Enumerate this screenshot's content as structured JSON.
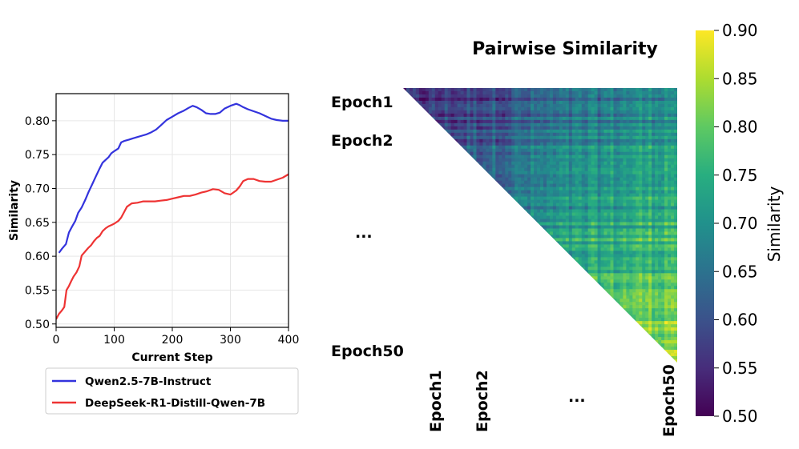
{
  "chart_data": [
    {
      "type": "line",
      "title": "",
      "xlabel": "Current Step",
      "ylabel": "Similarity",
      "xlim": [
        0,
        400
      ],
      "ylim": [
        0.495,
        0.84
      ],
      "x_ticks": [
        0,
        100,
        200,
        300,
        400
      ],
      "y_ticks": [
        0.5,
        0.55,
        0.6,
        0.65,
        0.7,
        0.75,
        0.8
      ],
      "grid": true,
      "legend_position": "bottom-outside",
      "series": [
        {
          "name": "Qwen2.5-7B-Instruct",
          "color": "#3333dd",
          "x": [
            5,
            10,
            17,
            22,
            27,
            33,
            38,
            44,
            50,
            56,
            62,
            68,
            74,
            80,
            85,
            90,
            95,
            100,
            107,
            112,
            117,
            125,
            132,
            140,
            148,
            156,
            164,
            172,
            180,
            190,
            200,
            210,
            220,
            228,
            235,
            242,
            250,
            258,
            266,
            274,
            282,
            290,
            300,
            310,
            316,
            322,
            330,
            340,
            350,
            360,
            370,
            380,
            390,
            400
          ],
          "y": [
            0.605,
            0.611,
            0.618,
            0.635,
            0.643,
            0.652,
            0.664,
            0.672,
            0.683,
            0.695,
            0.706,
            0.717,
            0.728,
            0.738,
            0.742,
            0.746,
            0.752,
            0.755,
            0.759,
            0.768,
            0.77,
            0.772,
            0.774,
            0.776,
            0.778,
            0.78,
            0.783,
            0.787,
            0.793,
            0.801,
            0.806,
            0.811,
            0.815,
            0.819,
            0.822,
            0.82,
            0.816,
            0.811,
            0.81,
            0.81,
            0.812,
            0.818,
            0.822,
            0.825,
            0.823,
            0.82,
            0.817,
            0.814,
            0.811,
            0.807,
            0.803,
            0.801,
            0.8,
            0.8
          ]
        },
        {
          "name": "DeepSeek-R1-Distill-Qwen-7B",
          "color": "#ee3333",
          "x": [
            0,
            5,
            10,
            14,
            18,
            22,
            26,
            30,
            35,
            40,
            44,
            50,
            55,
            60,
            65,
            70,
            75,
            80,
            85,
            90,
            95,
            100,
            107,
            112,
            117,
            122,
            130,
            140,
            150,
            160,
            170,
            180,
            190,
            200,
            210,
            220,
            230,
            240,
            250,
            260,
            270,
            280,
            290,
            300,
            310,
            316,
            322,
            330,
            340,
            350,
            360,
            370,
            380,
            390,
            400
          ],
          "y": [
            0.507,
            0.515,
            0.52,
            0.525,
            0.55,
            0.556,
            0.563,
            0.57,
            0.576,
            0.585,
            0.601,
            0.607,
            0.612,
            0.616,
            0.622,
            0.627,
            0.63,
            0.637,
            0.641,
            0.644,
            0.646,
            0.648,
            0.652,
            0.657,
            0.665,
            0.673,
            0.678,
            0.679,
            0.681,
            0.681,
            0.681,
            0.682,
            0.683,
            0.685,
            0.687,
            0.689,
            0.689,
            0.691,
            0.694,
            0.696,
            0.699,
            0.698,
            0.693,
            0.691,
            0.697,
            0.703,
            0.711,
            0.714,
            0.714,
            0.711,
            0.71,
            0.71,
            0.713,
            0.716,
            0.721
          ]
        }
      ]
    },
    {
      "type": "heatmap",
      "title": "Pairwise Similarity",
      "row_labels": [
        "Epoch1",
        "Epoch2",
        "...",
        "Epoch50"
      ],
      "col_labels": [
        "Epoch1",
        "Epoch2",
        "...",
        "Epoch50"
      ],
      "shape": "upper-triangle",
      "value_trend": "similarity increases toward later epochs (top-left ≈ 0.55, bottom-right ≈ 0.85–0.90)",
      "colormap": "viridis",
      "colorbar": {
        "label": "Similarity",
        "range": [
          0.5,
          0.9
        ],
        "ticks": [
          "0.90",
          "0.85",
          "0.80",
          "0.75",
          "0.70",
          "0.65",
          "0.60",
          "0.55",
          "0.50"
        ]
      }
    }
  ]
}
